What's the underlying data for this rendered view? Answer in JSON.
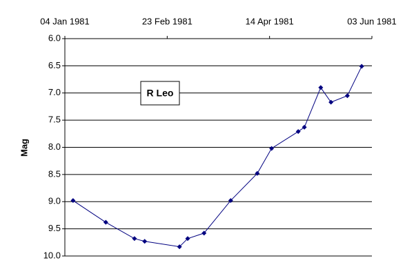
{
  "chart_data": {
    "type": "line",
    "annotation": "R Leo",
    "ylabel": "Mag",
    "x": [
      "1981-01-08",
      "1981-01-24",
      "1981-02-07",
      "1981-02-12",
      "1981-03-01",
      "1981-03-05",
      "1981-03-13",
      "1981-03-26",
      "1981-04-08",
      "1981-04-15",
      "1981-04-28",
      "1981-05-01",
      "1981-05-09",
      "1981-05-14",
      "1981-05-22",
      "1981-05-29"
    ],
    "series": [
      {
        "name": "R Leo",
        "color": "#000080",
        "values": [
          8.98,
          9.38,
          9.68,
          9.73,
          9.83,
          9.68,
          9.58,
          8.98,
          8.48,
          8.02,
          7.71,
          7.63,
          6.9,
          7.17,
          7.05,
          6.51
        ]
      }
    ],
    "xlim": [
      "1981-01-04",
      "1981-06-03"
    ],
    "xticks": [
      {
        "value": "1981-01-04",
        "label": "04 Jan 1981"
      },
      {
        "value": "1981-02-23",
        "label": "23 Feb 1981"
      },
      {
        "value": "1981-04-14",
        "label": "14 Apr 1981"
      },
      {
        "value": "1981-06-03",
        "label": "03 Jun 1981"
      }
    ],
    "ylim": [
      6,
      10
    ],
    "y_inverted": true,
    "yticks": [
      {
        "value": 6,
        "label": "6.0"
      },
      {
        "value": 6.5,
        "label": "6.5"
      },
      {
        "value": 7,
        "label": "7.0"
      },
      {
        "value": 7.5,
        "label": "7.5"
      },
      {
        "value": 8,
        "label": "8.0"
      },
      {
        "value": 8.5,
        "label": "8.5"
      },
      {
        "value": 9,
        "label": "9.0"
      },
      {
        "value": 9.5,
        "label": "9.5"
      },
      {
        "value": 10,
        "label": "10.0"
      }
    ],
    "grid": true
  }
}
